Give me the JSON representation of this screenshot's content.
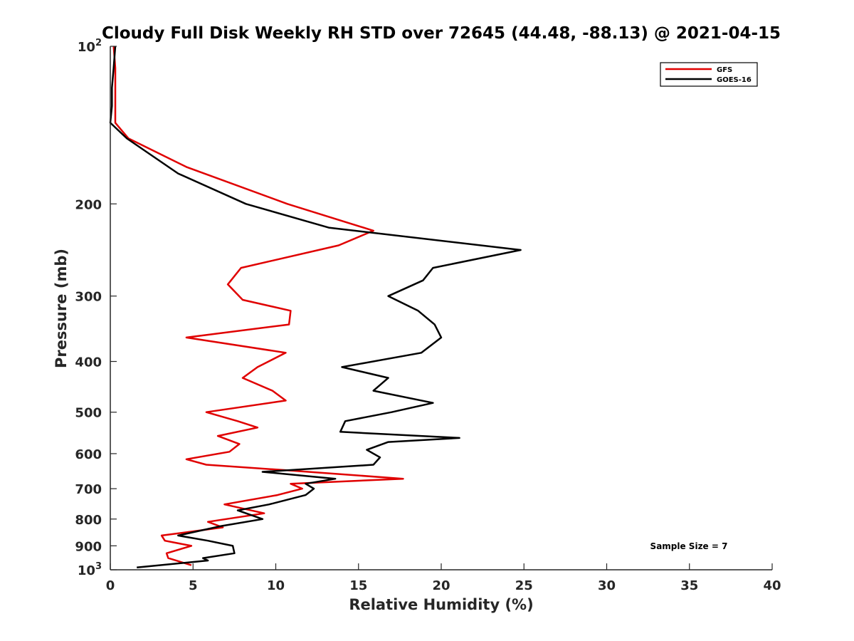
{
  "chart_data": {
    "type": "line",
    "title": "Cloudy Full Disk Weekly RH STD over 72645 (44.48, -88.13) @ 2021-04-15",
    "xlabel": "Relative Humidity (%)",
    "ylabel": "Pressure (mb)",
    "xlim": [
      0,
      40
    ],
    "ylim": [
      1000,
      100
    ],
    "y_scale": "log",
    "x_ticks": [
      "0",
      "5",
      "10",
      "15",
      "20",
      "25",
      "30",
      "35",
      "40"
    ],
    "y_ticks": [
      {
        "value": 100,
        "base": "10",
        "exp": "2"
      },
      {
        "value": 200,
        "label": "200"
      },
      {
        "value": 300,
        "label": "300"
      },
      {
        "value": 400,
        "label": "400"
      },
      {
        "value": 500,
        "label": "500"
      },
      {
        "value": 600,
        "label": "600"
      },
      {
        "value": 700,
        "label": "700"
      },
      {
        "value": 800,
        "label": "800"
      },
      {
        "value": 900,
        "label": "900"
      },
      {
        "value": 1000,
        "base": "10",
        "exp": "3"
      }
    ],
    "grid": false,
    "legend_position": "top-right",
    "annotation": "Sample Size = 7",
    "series": [
      {
        "name": "GFS",
        "color": "#e00000",
        "x": [
          0.2,
          0.3,
          0.3,
          0.3,
          0.3,
          1.1,
          4.6,
          10.7,
          15.9,
          13.8,
          7.9,
          7.1,
          8.0,
          10.9,
          10.8,
          4.6,
          10.6,
          8.9,
          8.0,
          9.8,
          10.6,
          5.8,
          7.7,
          8.9,
          6.5,
          7.8,
          7.2,
          4.6,
          5.8,
          10.5,
          17.7,
          10.9,
          11.6,
          10.1,
          6.9,
          9.3,
          5.9,
          6.8,
          3.1,
          3.3,
          4.9,
          3.4,
          3.5,
          4.9
        ],
        "y": [
          100,
          110,
          120,
          130,
          140,
          150,
          170,
          200,
          225,
          240,
          265,
          285,
          305,
          320,
          340,
          360,
          385,
          410,
          430,
          455,
          475,
          500,
          520,
          535,
          555,
          575,
          595,
          615,
          630,
          645,
          670,
          685,
          700,
          720,
          750,
          780,
          810,
          830,
          860,
          880,
          900,
          930,
          950,
          980
        ]
      },
      {
        "name": "GOES-16",
        "color": "#000000",
        "x": [
          0.3,
          0.2,
          0.1,
          0.1,
          0.0,
          1.0,
          4.1,
          8.2,
          13.2,
          24.8,
          19.5,
          18.9,
          16.8,
          18.6,
          19.6,
          20.0,
          18.8,
          14.0,
          16.8,
          15.9,
          19.5,
          17.0,
          14.2,
          13.9,
          21.1,
          16.8,
          15.5,
          16.3,
          15.9,
          9.2,
          13.6,
          11.8,
          12.3,
          11.8,
          9.6,
          7.7,
          9.2,
          6.7,
          4.1,
          5.9,
          7.4,
          7.5,
          5.6,
          5.9,
          1.6
        ],
        "y": [
          100,
          110,
          120,
          130,
          140,
          150,
          175,
          200,
          222,
          245,
          265,
          280,
          300,
          320,
          340,
          360,
          385,
          410,
          430,
          455,
          480,
          500,
          520,
          545,
          560,
          570,
          590,
          610,
          630,
          650,
          670,
          685,
          700,
          720,
          750,
          770,
          800,
          825,
          860,
          880,
          900,
          930,
          950,
          960,
          990
        ]
      }
    ]
  }
}
